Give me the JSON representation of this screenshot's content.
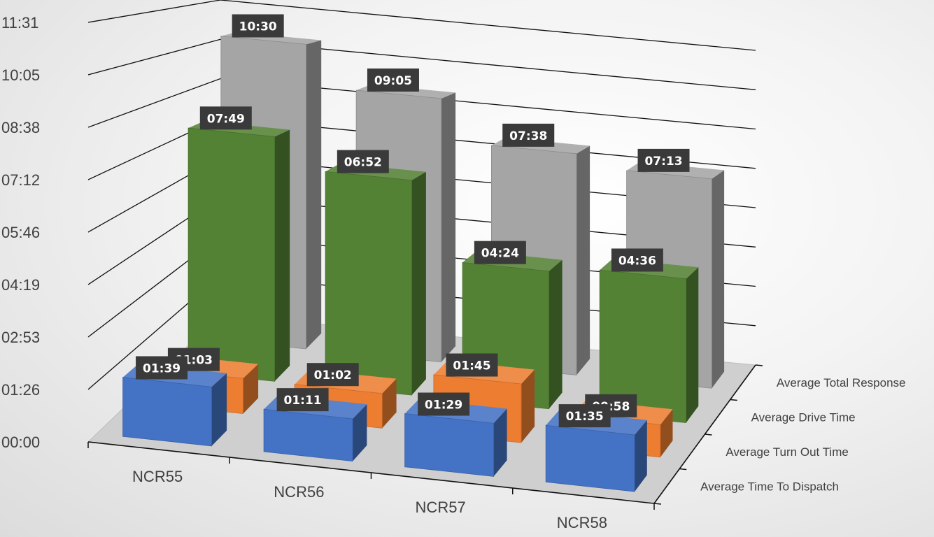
{
  "chart_data": {
    "type": "bar",
    "style": "3d-column",
    "categories": [
      "NCR55",
      "NCR56",
      "NCR57",
      "NCR58"
    ],
    "y_ticks": [
      "00:00",
      "01:26",
      "02:53",
      "04:19",
      "05:46",
      "07:12",
      "08:38",
      "10:05",
      "11:31"
    ],
    "ylim_seconds": [
      0,
      691
    ],
    "series": [
      {
        "name": "Average Time To Dispatch",
        "color": "#4472c4",
        "values": [
          "01:39",
          "01:11",
          "01:29",
          "01:35"
        ]
      },
      {
        "name": "Average Turn Out Time",
        "color": "#ed7d31",
        "values": [
          "01:03",
          "01:02",
          "01:45",
          "00:58"
        ]
      },
      {
        "name": "Average Drive Time",
        "color": "#548235",
        "values": [
          "07:49",
          "06:52",
          "04:24",
          "04:36"
        ]
      },
      {
        "name": "Average Total Response",
        "color": "#a5a5a5",
        "values": [
          "10:30",
          "09:05",
          "07:38",
          "07:13"
        ]
      }
    ],
    "legend": "right-depth-axis",
    "grid": true
  }
}
